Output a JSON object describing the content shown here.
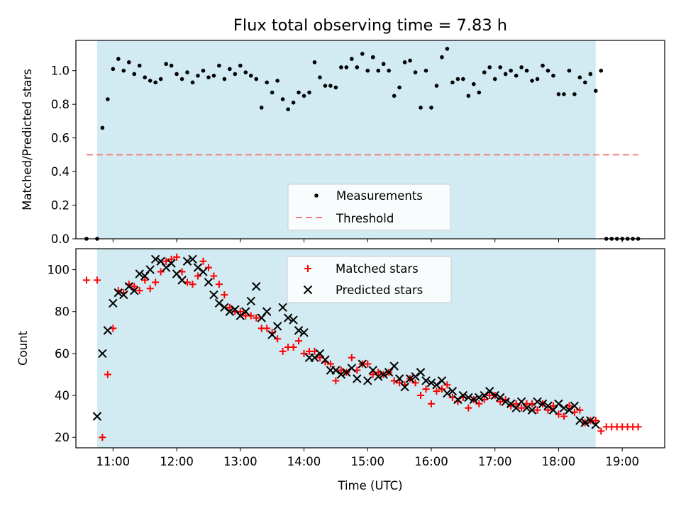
{
  "title": "Flux total observing time = 7.83 h",
  "colors": {
    "shade": "#add8e6",
    "threshold": "#f08080",
    "matched": "#ff0000",
    "predicted": "#000000",
    "measurement": "#000000"
  },
  "chart_data": [
    {
      "type": "scatter",
      "ylabel": "Matched/Predicted stars",
      "xlim": [
        "10:25",
        "19:40"
      ],
      "ylim": [
        0,
        1.18
      ],
      "yticks": [
        "0.0",
        "0.2",
        "0.4",
        "0.6",
        "0.8",
        "1.0"
      ],
      "ytick_values": [
        0,
        0.2,
        0.4,
        0.6,
        0.8,
        1.0
      ],
      "shaded_interval": [
        "10:45",
        "18:35"
      ],
      "legend": {
        "placement": "lower center",
        "entries": [
          "Measurements",
          "Threshold"
        ]
      },
      "threshold": {
        "name": "Threshold",
        "value": 0.5,
        "x_start": "10:35",
        "x_end": "19:15"
      },
      "series": [
        {
          "name": "Measurements",
          "x": [
            "10:35",
            "10:45",
            "10:50",
            "10:55",
            "11:00",
            "11:05",
            "11:10",
            "11:15",
            "11:20",
            "11:25",
            "11:30",
            "11:35",
            "11:40",
            "11:45",
            "11:50",
            "11:55",
            "12:00",
            "12:05",
            "12:10",
            "12:15",
            "12:20",
            "12:25",
            "12:30",
            "12:35",
            "12:40",
            "12:45",
            "12:50",
            "12:55",
            "13:00",
            "13:05",
            "13:10",
            "13:15",
            "13:20",
            "13:25",
            "13:30",
            "13:35",
            "13:40",
            "13:45",
            "13:50",
            "13:55",
            "14:00",
            "14:05",
            "14:10",
            "14:15",
            "14:20",
            "14:25",
            "14:30",
            "14:35",
            "14:40",
            "14:45",
            "14:50",
            "14:55",
            "15:00",
            "15:05",
            "15:10",
            "15:15",
            "15:20",
            "15:25",
            "15:30",
            "15:35",
            "15:40",
            "15:45",
            "15:50",
            "15:55",
            "16:00",
            "16:05",
            "16:10",
            "16:15",
            "16:20",
            "16:25",
            "16:30",
            "16:35",
            "16:40",
            "16:45",
            "16:50",
            "16:55",
            "17:00",
            "17:05",
            "17:10",
            "17:15",
            "17:20",
            "17:25",
            "17:30",
            "17:35",
            "17:40",
            "17:45",
            "17:50",
            "17:55",
            "18:00",
            "18:05",
            "18:10",
            "18:15",
            "18:20",
            "18:25",
            "18:30",
            "18:35",
            "18:40",
            "18:45",
            "18:50",
            "18:55",
            "19:00",
            "19:05",
            "19:10",
            "19:15"
          ],
          "y": [
            0.0,
            0.0,
            0.66,
            0.83,
            1.01,
            1.07,
            1.0,
            1.05,
            0.98,
            1.03,
            0.96,
            0.94,
            0.93,
            0.95,
            1.04,
            1.03,
            0.98,
            0.95,
            0.99,
            0.93,
            0.97,
            1.0,
            0.96,
            0.97,
            1.03,
            0.95,
            1.01,
            0.98,
            1.03,
            0.99,
            0.97,
            0.95,
            0.78,
            0.93,
            0.87,
            0.94,
            0.83,
            0.77,
            0.81,
            0.87,
            0.85,
            0.87,
            1.05,
            0.96,
            0.91,
            0.91,
            0.9,
            1.02,
            1.02,
            1.07,
            1.02,
            1.1,
            1.0,
            1.08,
            1.0,
            1.04,
            1.0,
            0.85,
            0.9,
            1.05,
            1.06,
            0.99,
            0.78,
            1.0,
            0.78,
            0.91,
            1.08,
            1.13,
            0.93,
            0.95,
            0.95,
            0.85,
            0.92,
            0.87,
            0.99,
            1.02,
            0.95,
            1.02,
            0.98,
            1.0,
            0.97,
            1.02,
            1.0,
            0.94,
            0.95,
            1.03,
            1.0,
            0.97,
            0.86,
            0.86,
            1.0,
            0.86,
            0.96,
            0.93,
            0.98,
            0.88,
            1.0,
            0.0,
            0.0,
            0.0,
            0.0,
            0.0,
            0.0,
            0.0
          ]
        }
      ]
    },
    {
      "type": "scatter",
      "xlabel": "Time (UTC)",
      "ylabel": "Count",
      "xlim": [
        "10:25",
        "19:40"
      ],
      "ylim": [
        15,
        110
      ],
      "yticks": [
        "20",
        "40",
        "60",
        "80",
        "100"
      ],
      "ytick_values": [
        20,
        40,
        60,
        80,
        100
      ],
      "xticks": [
        "11:00",
        "12:00",
        "13:00",
        "14:00",
        "15:00",
        "16:00",
        "17:00",
        "18:00",
        "19:00"
      ],
      "shaded_interval": [
        "10:45",
        "18:35"
      ],
      "legend": {
        "placement": "upper center",
        "entries": [
          "Matched stars",
          "Predicted stars"
        ]
      },
      "series": [
        {
          "name": "Matched stars",
          "marker": "+",
          "x": [
            "10:35",
            "10:45",
            "10:50",
            "10:55",
            "11:00",
            "11:05",
            "11:10",
            "11:15",
            "11:20",
            "11:25",
            "11:30",
            "11:35",
            "11:40",
            "11:45",
            "11:50",
            "11:55",
            "12:00",
            "12:05",
            "12:10",
            "12:15",
            "12:20",
            "12:25",
            "12:30",
            "12:35",
            "12:40",
            "12:45",
            "12:50",
            "12:55",
            "13:00",
            "13:05",
            "13:10",
            "13:15",
            "13:20",
            "13:25",
            "13:30",
            "13:35",
            "13:40",
            "13:45",
            "13:50",
            "13:55",
            "14:00",
            "14:05",
            "14:10",
            "14:15",
            "14:20",
            "14:25",
            "14:30",
            "14:35",
            "14:40",
            "14:45",
            "14:50",
            "14:55",
            "15:00",
            "15:05",
            "15:10",
            "15:15",
            "15:20",
            "15:25",
            "15:30",
            "15:35",
            "15:40",
            "15:45",
            "15:50",
            "15:55",
            "16:00",
            "16:05",
            "16:10",
            "16:15",
            "16:20",
            "16:25",
            "16:30",
            "16:35",
            "16:40",
            "16:45",
            "16:50",
            "16:55",
            "17:00",
            "17:05",
            "17:10",
            "17:15",
            "17:20",
            "17:25",
            "17:30",
            "17:35",
            "17:40",
            "17:45",
            "17:50",
            "17:55",
            "18:00",
            "18:05",
            "18:10",
            "18:15",
            "18:20",
            "18:25",
            "18:30",
            "18:35",
            "18:40",
            "18:45",
            "18:50",
            "18:55",
            "19:00",
            "19:05",
            "19:10",
            "19:15"
          ],
          "y": [
            95,
            95,
            20,
            50,
            72,
            90,
            89,
            93,
            92,
            90,
            95,
            91,
            94,
            99,
            104,
            105,
            106,
            99,
            94,
            93,
            97,
            104,
            101,
            97,
            93,
            88,
            82,
            80,
            80,
            78,
            78,
            77,
            72,
            72,
            70,
            67,
            61,
            63,
            63,
            66,
            60,
            61,
            61,
            58,
            56,
            55,
            47,
            52,
            51,
            58,
            52,
            55,
            55,
            50,
            51,
            50,
            51,
            47,
            46,
            45,
            48,
            46,
            40,
            43,
            36,
            42,
            43,
            45,
            39,
            37,
            39,
            34,
            38,
            36,
            38,
            40,
            40,
            37,
            38,
            35,
            36,
            34,
            36,
            36,
            33,
            36,
            33,
            35,
            31,
            30,
            35,
            32,
            33,
            27,
            28,
            28,
            23,
            25,
            25,
            25,
            25,
            25,
            25,
            25
          ]
        },
        {
          "name": "Predicted stars",
          "marker": "x",
          "x": [
            "10:45",
            "10:50",
            "10:55",
            "11:00",
            "11:05",
            "11:10",
            "11:15",
            "11:20",
            "11:25",
            "11:30",
            "11:35",
            "11:40",
            "11:45",
            "11:50",
            "11:55",
            "12:00",
            "12:05",
            "12:10",
            "12:15",
            "12:20",
            "12:25",
            "12:30",
            "12:35",
            "12:40",
            "12:45",
            "12:50",
            "12:55",
            "13:00",
            "13:05",
            "13:10",
            "13:15",
            "13:20",
            "13:25",
            "13:30",
            "13:35",
            "13:40",
            "13:45",
            "13:50",
            "13:55",
            "14:00",
            "14:05",
            "14:10",
            "14:15",
            "14:20",
            "14:25",
            "14:30",
            "14:35",
            "14:40",
            "14:45",
            "14:50",
            "14:55",
            "15:00",
            "15:05",
            "15:10",
            "15:15",
            "15:20",
            "15:25",
            "15:30",
            "15:35",
            "15:40",
            "15:45",
            "15:50",
            "15:55",
            "16:00",
            "16:05",
            "16:10",
            "16:15",
            "16:20",
            "16:25",
            "16:30",
            "16:35",
            "16:40",
            "16:45",
            "16:50",
            "16:55",
            "17:00",
            "17:05",
            "17:10",
            "17:15",
            "17:20",
            "17:25",
            "17:30",
            "17:35",
            "17:40",
            "17:45",
            "17:50",
            "17:55",
            "18:00",
            "18:05",
            "18:10",
            "18:15",
            "18:20",
            "18:25",
            "18:30",
            "18:35"
          ],
          "y": [
            30,
            60,
            71,
            84,
            89,
            88,
            92,
            90,
            98,
            97,
            100,
            105,
            104,
            101,
            103,
            98,
            95,
            104,
            105,
            101,
            99,
            94,
            88,
            84,
            82,
            80,
            81,
            78,
            80,
            85,
            92,
            77,
            80,
            69,
            73,
            82,
            77,
            76,
            71,
            70,
            58,
            58,
            60,
            57,
            52,
            52,
            50,
            51,
            53,
            48,
            55,
            47,
            52,
            49,
            50,
            51,
            54,
            48,
            44,
            48,
            49,
            51,
            47,
            46,
            45,
            47,
            41,
            42,
            38,
            40,
            39,
            38,
            39,
            40,
            42,
            40,
            39,
            37,
            36,
            34,
            37,
            34,
            33,
            37,
            36,
            35,
            33,
            36,
            34,
            33,
            35,
            28,
            27,
            28,
            26
          ]
        }
      ]
    }
  ]
}
